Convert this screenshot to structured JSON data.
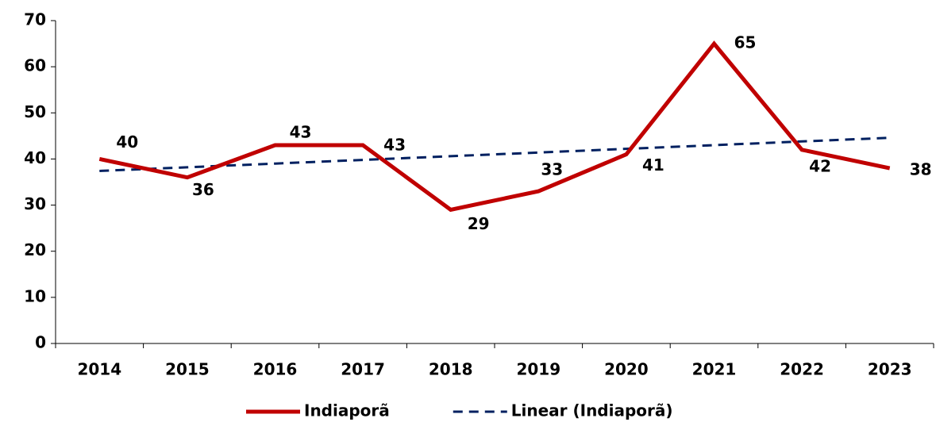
{
  "chart_data": {
    "type": "line",
    "categories": [
      "2014",
      "2015",
      "2016",
      "2017",
      "2018",
      "2019",
      "2020",
      "2021",
      "2022",
      "2023"
    ],
    "series": [
      {
        "name": "Indiaporã",
        "color": "#c00000",
        "dash": false,
        "data_labels": true,
        "values": [
          40,
          36,
          43,
          43,
          29,
          33,
          41,
          65,
          42,
          38
        ]
      },
      {
        "name": "Linear (Indiaporã)",
        "color": "#002060",
        "dash": true,
        "data_labels": false,
        "values": [
          37.4,
          38.2,
          39.0,
          39.8,
          40.6,
          41.4,
          42.2,
          43.0,
          43.8,
          44.6
        ]
      }
    ],
    "ylim": [
      0,
      70
    ],
    "yticks": [
      0,
      10,
      20,
      30,
      40,
      50,
      60,
      70
    ],
    "grid": false,
    "legend": "bottom"
  }
}
